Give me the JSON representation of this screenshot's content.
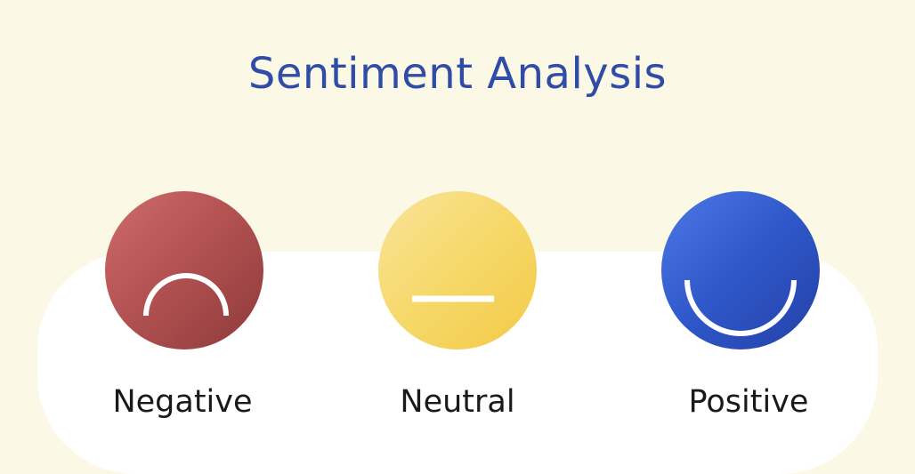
{
  "title": "Sentiment Analysis",
  "sentiments": [
    {
      "label": "Negative",
      "icon": "frown-face-icon",
      "color": "#b35252"
    },
    {
      "label": "Neutral",
      "icon": "neutral-face-icon",
      "color": "#f6d869"
    },
    {
      "label": "Positive",
      "icon": "smile-face-icon",
      "color": "#2f57c9"
    }
  ],
  "colors": {
    "background": "#fbf8e6",
    "title": "#2f4da6",
    "panel": "#ffffff"
  }
}
